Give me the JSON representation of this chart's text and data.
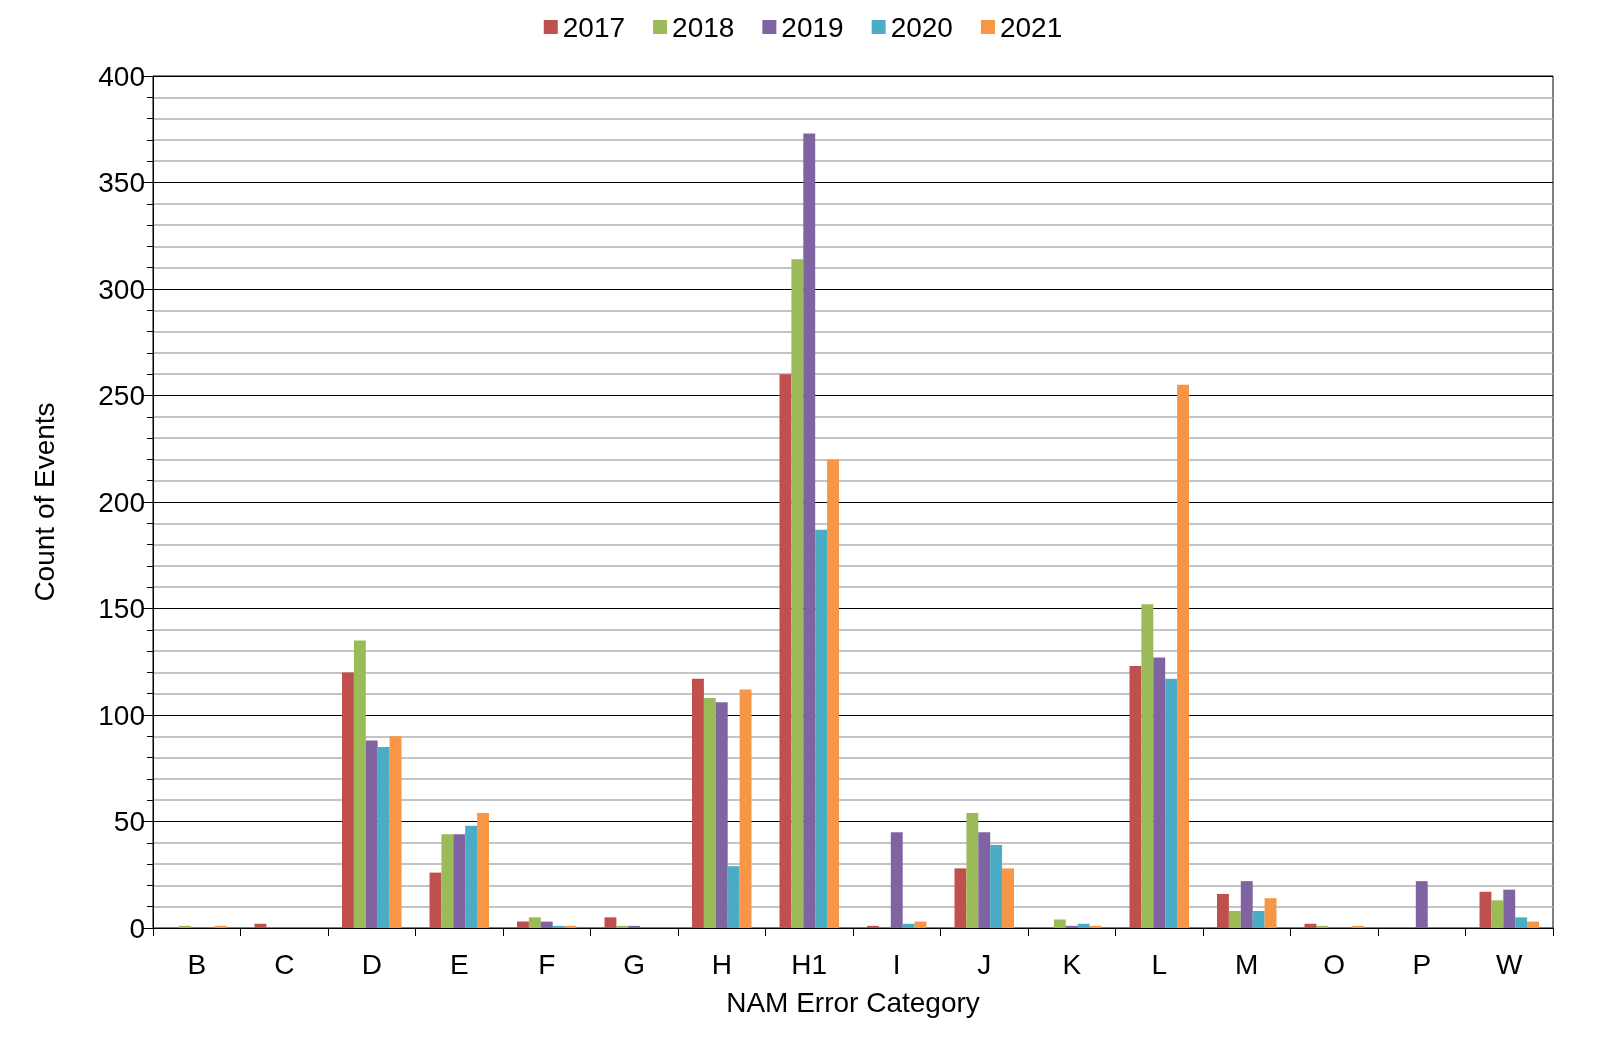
{
  "chart_data": {
    "type": "bar",
    "xlabel": "NAM Error Category",
    "ylabel": "Count of Events",
    "categories": [
      "B",
      "C",
      "D",
      "E",
      "F",
      "G",
      "H",
      "H1",
      "I",
      "J",
      "K",
      "L",
      "M",
      "O",
      "P",
      "W"
    ],
    "series": [
      {
        "name": "2017",
        "color": "#c0504d",
        "values": [
          0,
          2,
          120,
          26,
          3,
          5,
          117,
          260,
          1,
          28,
          0,
          123,
          16,
          2,
          0,
          17
        ]
      },
      {
        "name": "2018",
        "color": "#9bbb59",
        "values": [
          1,
          0,
          135,
          44,
          5,
          1,
          108,
          314,
          0,
          54,
          4,
          152,
          8,
          1,
          0,
          13
        ]
      },
      {
        "name": "2019",
        "color": "#8064a2",
        "values": [
          0,
          0,
          88,
          44,
          3,
          1,
          106,
          373,
          45,
          45,
          1,
          127,
          22,
          0,
          22,
          18
        ]
      },
      {
        "name": "2020",
        "color": "#4bacc6",
        "values": [
          0,
          0,
          85,
          48,
          1,
          0,
          29,
          187,
          2,
          39,
          2,
          117,
          8,
          0,
          0,
          5
        ]
      },
      {
        "name": "2021",
        "color": "#f79646",
        "values": [
          1,
          0,
          90,
          54,
          1,
          0,
          112,
          220,
          3,
          28,
          1,
          255,
          14,
          1,
          0,
          3
        ]
      }
    ],
    "ylim": [
      0,
      400
    ],
    "yticks": [
      0,
      50,
      100,
      150,
      200,
      250,
      300,
      350,
      400
    ],
    "grid": "y",
    "legend": "top"
  }
}
